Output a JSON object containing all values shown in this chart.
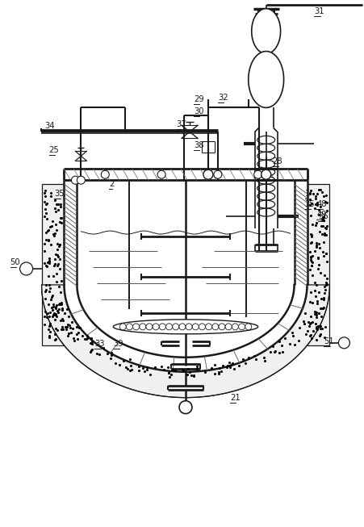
{
  "bg_color": "#ffffff",
  "line_color": "#1a1a1a",
  "fig_width": 4.52,
  "fig_height": 6.53,
  "dpi": 100
}
